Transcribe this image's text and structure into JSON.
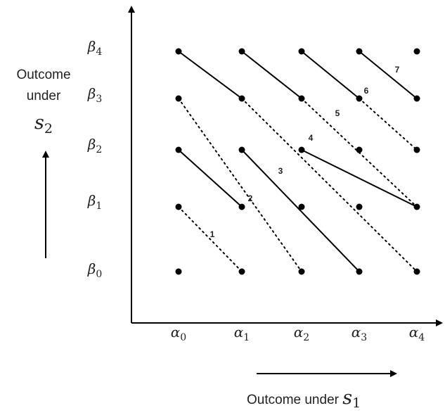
{
  "x_axis_label": {
    "text": "Outcome under ",
    "var": "s",
    "sub": "1"
  },
  "y_axis_label": {
    "line1": "Outcome",
    "line2": "under",
    "var": "s",
    "sub": "2"
  },
  "x_ticks": [
    {
      "sym": "α",
      "sub": "0"
    },
    {
      "sym": "α",
      "sub": "1"
    },
    {
      "sym": "α",
      "sub": "2"
    },
    {
      "sym": "α",
      "sub": "3"
    },
    {
      "sym": "α",
      "sub": "4"
    }
  ],
  "y_ticks": [
    {
      "sym": "β",
      "sub": "0"
    },
    {
      "sym": "β",
      "sub": "1"
    },
    {
      "sym": "β",
      "sub": "2"
    },
    {
      "sym": "β",
      "sub": "3"
    },
    {
      "sym": "β",
      "sub": "4"
    }
  ],
  "grid_points": {
    "cols": 5,
    "rows": 5
  },
  "segments": [
    {
      "from": [
        0,
        1
      ],
      "to": [
        1,
        0
      ],
      "style": "dotted"
    },
    {
      "from": [
        0,
        2
      ],
      "to": [
        1,
        1
      ],
      "style": "solid"
    },
    {
      "from": [
        0,
        3
      ],
      "to": [
        2,
        0
      ],
      "style": "dotted"
    },
    {
      "from": [
        0,
        4
      ],
      "to": [
        1,
        3
      ],
      "style": "solid"
    },
    {
      "from": [
        1,
        2
      ],
      "to": [
        3,
        0
      ],
      "style": "solid"
    },
    {
      "from": [
        1,
        3
      ],
      "to": [
        4,
        0
      ],
      "style": "dotted"
    },
    {
      "from": [
        2,
        2
      ],
      "to": [
        4,
        1
      ],
      "style": "solid"
    },
    {
      "from": [
        2,
        4
      ],
      "to": [
        3,
        3
      ],
      "style": "solid"
    },
    {
      "from": [
        3,
        3
      ],
      "to": [
        4,
        2
      ],
      "style": "dotted"
    },
    {
      "from": [
        1,
        4
      ],
      "to": [
        2,
        3
      ],
      "style": "solid"
    },
    {
      "from": [
        2,
        3
      ],
      "to": [
        4,
        1
      ],
      "style": "dotted"
    },
    {
      "from": [
        3,
        4
      ],
      "to": [
        4,
        3
      ],
      "style": "solid"
    }
  ],
  "region_labels": [
    "1",
    "2",
    "3",
    "4",
    "5",
    "6",
    "7"
  ]
}
